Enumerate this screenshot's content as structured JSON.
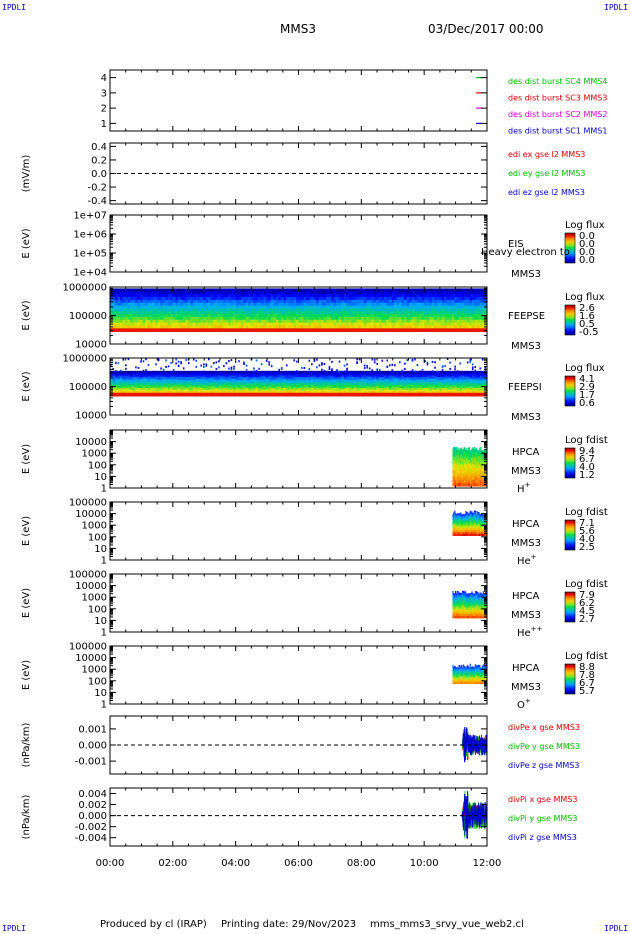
{
  "header": {
    "corner_label": "IPDLI",
    "spacecraft": "MMS3",
    "datetime": "03/Dec/2017 00:00"
  },
  "footer": {
    "produced_by": "Produced by cl (IRAP)",
    "printing_date": "Printing date: 29/Nov/2023",
    "script_name": "mms_mms3_srvy_vue_web2.cl"
  },
  "colors": {
    "black": "#000000",
    "red": "#dd0000",
    "green": "#00bb00",
    "blue": "#0000cc",
    "magenta": "#dd00dd"
  },
  "x_axis": {
    "range": [
      0,
      12
    ],
    "ticks": [
      0,
      2,
      4,
      6,
      8,
      10,
      12
    ],
    "tick_labels": [
      "00:00",
      "02:00",
      "04:00",
      "06:00",
      "08:00",
      "10:00",
      "12:00"
    ]
  },
  "chart_data": [
    {
      "id": "burst",
      "type": "scatter",
      "ylabel": "",
      "ylim": [
        0.5,
        4.5
      ],
      "yticks": [
        1,
        2,
        3,
        4
      ],
      "ytick_labels": [
        "1",
        "2",
        "3",
        "4"
      ],
      "series": [
        {
          "name": "des dist burst SC1 MMS1",
          "color": "#0000cc",
          "x": [
            11.75
          ],
          "y": [
            1
          ]
        },
        {
          "name": "des dist burst SC2 MMS2",
          "color": "#dd00dd",
          "x": [
            11.75
          ],
          "y": [
            2
          ]
        },
        {
          "name": "des dist burst SC3 MMS3",
          "color": "#dd0000",
          "x": [
            11.75
          ],
          "y": [
            3
          ]
        },
        {
          "name": "des dist burst SC4 MMS4",
          "color": "#00bb00",
          "x": [
            11.75
          ],
          "y": [
            4
          ]
        }
      ],
      "legend": [
        "des dist burst SC1 MMS1",
        "des dist burst SC2 MMS2",
        "des dist burst SC3 MMS3",
        "des dist burst SC4 MMS4"
      ],
      "legend_colors": [
        "#0000cc",
        "#dd00dd",
        "#dd0000",
        "#00bb00"
      ]
    },
    {
      "id": "edi",
      "type": "line",
      "ylabel": "(mV/m)",
      "ylim": [
        -0.45,
        0.45
      ],
      "yticks": [
        0.4,
        0.2,
        0.0,
        -0.2,
        -0.4
      ],
      "ytick_labels": [
        "0.4",
        "0.2",
        "0.0",
        "-0.2",
        "-0.4"
      ],
      "zero_line": true,
      "legend": [
        "edi ex gse l2 MMS3",
        "edi ey gse l2 MMS3",
        "edi ez gse l2 MMS3"
      ],
      "legend_colors": [
        "#dd0000",
        "#00bb00",
        "#0000cc"
      ]
    },
    {
      "id": "eis",
      "type": "heatmap",
      "ylabel": "E (eV)",
      "log_y": true,
      "ylim": [
        10000,
        10000000
      ],
      "yticks": [
        10000000,
        1000000,
        100000,
        10000
      ],
      "ytick_labels": [
        "1e+07",
        "1e+06",
        "1e+05",
        "1e+04"
      ],
      "instrument": [
        "EIS",
        "MMS3"
      ],
      "overlay_text": "Heavy electron to",
      "colorbar": {
        "title": "Log flux",
        "ticks": [
          "0.0",
          "0.0",
          "0.0",
          "0.0"
        ]
      }
    },
    {
      "id": "feepse",
      "type": "heatmap",
      "ylabel": "E (eV)",
      "log_y": true,
      "ylim": [
        10000,
        1000000
      ],
      "yticks": [
        1000000,
        100000,
        10000
      ],
      "ytick_labels": [
        "1000000",
        "100000",
        "10000"
      ],
      "instrument": [
        "FEEPSE",
        "MMS3"
      ],
      "data_x": [
        0,
        12
      ],
      "colorbar": {
        "title": "Log flux",
        "ticks": [
          "2.6",
          "1.6",
          "0.5",
          "-0.5"
        ]
      }
    },
    {
      "id": "feepsi",
      "type": "heatmap",
      "ylabel": "E (eV)",
      "log_y": true,
      "ylim": [
        10000,
        1000000
      ],
      "yticks": [
        1000000,
        100000,
        10000
      ],
      "ytick_labels": [
        "1000000",
        "100000",
        "10000"
      ],
      "instrument": [
        "FEEPSI",
        "MMS3"
      ],
      "data_x": [
        0,
        12
      ],
      "colorbar": {
        "title": "Log flux",
        "ticks": [
          "4.1",
          "2.9",
          "1.7",
          "0.6"
        ]
      }
    },
    {
      "id": "hpca-h",
      "type": "heatmap",
      "ylabel": "E (eV)",
      "log_y": true,
      "ylim": [
        1,
        100000
      ],
      "yticks": [
        10000,
        1000,
        100,
        10,
        1
      ],
      "ytick_labels": [
        "10000",
        "1000",
        "100",
        "10",
        "1"
      ],
      "instrument": [
        "HPCA",
        "MMS3"
      ],
      "species": "H",
      "species_sup": "+",
      "data_x": [
        10.9,
        12
      ],
      "colorbar": {
        "title": "Log fdist",
        "ticks": [
          "9.4",
          "6.7",
          "4.0",
          "1.2"
        ]
      }
    },
    {
      "id": "hpca-he",
      "type": "heatmap",
      "ylabel": "E (eV)",
      "log_y": true,
      "ylim": [
        1,
        100000
      ],
      "yticks": [
        100000,
        10000,
        1000,
        100,
        10,
        1
      ],
      "ytick_labels": [
        "100000",
        "10000",
        "1000",
        "100",
        "10",
        "1"
      ],
      "instrument": [
        "HPCA",
        "MMS3"
      ],
      "species": "He",
      "species_sup": "+",
      "data_x": [
        10.9,
        12
      ],
      "colorbar": {
        "title": "Log fdist",
        "ticks": [
          "7.1",
          "5.6",
          "4.0",
          "2.5"
        ]
      }
    },
    {
      "id": "hpca-he2",
      "type": "heatmap",
      "ylabel": "E (eV)",
      "log_y": true,
      "ylim": [
        1,
        100000
      ],
      "yticks": [
        100000,
        10000,
        1000,
        100,
        10,
        1
      ],
      "ytick_labels": [
        "100000",
        "10000",
        "1000",
        "100",
        "10",
        "1"
      ],
      "instrument": [
        "HPCA",
        "MMS3"
      ],
      "species": "He",
      "species_sup": "++",
      "data_x": [
        10.9,
        12
      ],
      "colorbar": {
        "title": "Log fdist",
        "ticks": [
          "7.9",
          "6.2",
          "4.5",
          "2.7"
        ]
      }
    },
    {
      "id": "hpca-o",
      "type": "heatmap",
      "ylabel": "E (eV)",
      "log_y": true,
      "ylim": [
        1,
        100000
      ],
      "yticks": [
        100000,
        10000,
        1000,
        100,
        10,
        1
      ],
      "ytick_labels": [
        "100000",
        "10000",
        "1000",
        "100",
        "10",
        "1"
      ],
      "instrument": [
        "HPCA",
        "MMS3"
      ],
      "species": "O",
      "species_sup": "+",
      "data_x": [
        10.9,
        12
      ],
      "colorbar": {
        "title": "Log fdist",
        "ticks": [
          "8.8",
          "7.8",
          "6.7",
          "5.7"
        ]
      }
    },
    {
      "id": "divpe",
      "type": "line",
      "ylabel": "(nPa/km)",
      "ylim": [
        -0.0018,
        0.0018
      ],
      "yticks": [
        0.001,
        0.0,
        -0.001
      ],
      "ytick_labels": [
        "0.001",
        "0.000",
        "-0.001"
      ],
      "zero_line": true,
      "data_x": [
        11.2,
        12
      ],
      "amplitude": 0.0012,
      "legend": [
        "divPe x gse MMS3",
        "divPe y gse MMS3",
        "divPe z gse MMS3"
      ],
      "legend_colors": [
        "#dd0000",
        "#00bb00",
        "#0000cc"
      ]
    },
    {
      "id": "divpi",
      "type": "line",
      "ylabel": "(nPa/km)",
      "ylim": [
        -0.0055,
        0.005
      ],
      "yticks": [
        0.004,
        0.002,
        0.0,
        -0.002,
        -0.004
      ],
      "ytick_labels": [
        "0.004",
        "0.002",
        "0.000",
        "-0.002",
        "-0.004"
      ],
      "zero_line": true,
      "data_x": [
        11.2,
        12
      ],
      "amplitude": 0.0045,
      "legend": [
        "divPi x gse MMS3",
        "divPi y gse MMS3",
        "divPi z gse MMS3"
      ],
      "legend_colors": [
        "#dd0000",
        "#00bb00",
        "#0000cc"
      ]
    }
  ]
}
